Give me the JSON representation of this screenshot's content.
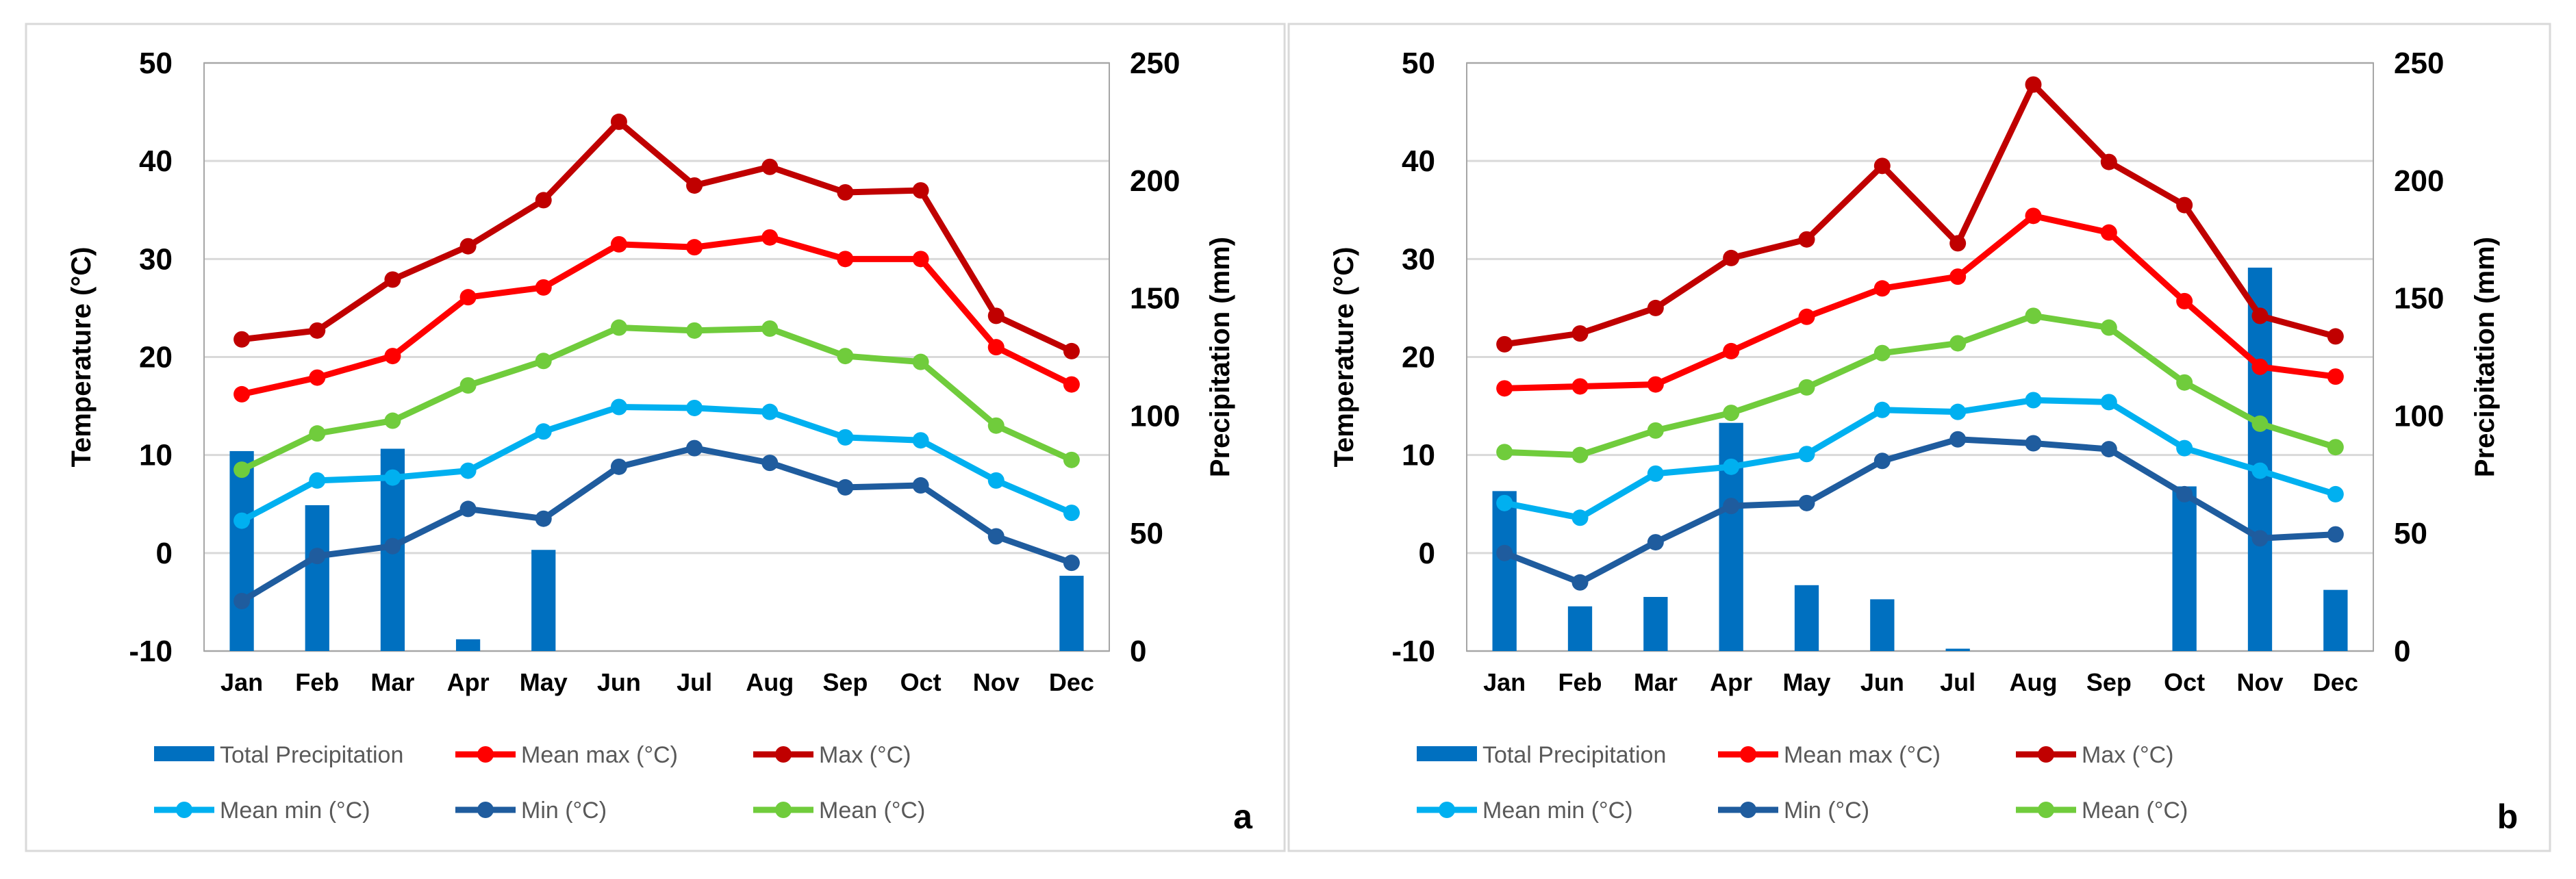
{
  "chart_data": [
    {
      "type": "bar+line",
      "panel_label": "a",
      "categories": [
        "Jan",
        "Feb",
        "Mar",
        "Apr",
        "May",
        "Jun",
        "Jul",
        "Aug",
        "Sep",
        "Oct",
        "Nov",
        "Dec"
      ],
      "ylabel": "Temperature (°C)",
      "y2label": "Precipitation (mm)",
      "ylim": [
        -10,
        50
      ],
      "yticks": [
        "-10",
        "0",
        "10",
        "20",
        "30",
        "40",
        "50"
      ],
      "y2lim": [
        0,
        250
      ],
      "y2ticks": [
        "0",
        "50",
        "100",
        "150",
        "200",
        "250"
      ],
      "bars": {
        "name": "Total Precipitation",
        "values": [
          85,
          62,
          86,
          5,
          43,
          0,
          0,
          0,
          0,
          0,
          0,
          32
        ]
      },
      "series": [
        {
          "name": "Max (°C)",
          "values": [
            21.8,
            22.7,
            27.9,
            31.3,
            36.0,
            44.0,
            37.5,
            39.4,
            36.8,
            37.0,
            24.2,
            20.6
          ]
        },
        {
          "name": "Mean max (°C)",
          "values": [
            16.2,
            17.9,
            20.1,
            26.1,
            27.1,
            31.5,
            31.2,
            32.2,
            30.0,
            30.0,
            21.0,
            17.2
          ]
        },
        {
          "name": "Mean (°C)",
          "values": [
            8.5,
            12.2,
            13.5,
            17.1,
            19.6,
            23.0,
            22.7,
            22.9,
            20.1,
            19.5,
            13.0,
            9.5
          ]
        },
        {
          "name": "Mean min (°C)",
          "values": [
            3.3,
            7.4,
            7.7,
            8.4,
            12.4,
            14.9,
            14.8,
            14.4,
            11.8,
            11.5,
            7.4,
            4.1
          ]
        },
        {
          "name": "Min (°C)",
          "values": [
            -4.9,
            -0.3,
            0.7,
            4.5,
            3.5,
            8.8,
            10.7,
            9.2,
            6.7,
            6.9,
            1.7,
            -1.0
          ]
        }
      ]
    },
    {
      "type": "bar+line",
      "panel_label": "b",
      "categories": [
        "Jan",
        "Feb",
        "Mar",
        "Apr",
        "May",
        "Jun",
        "Jul",
        "Aug",
        "Sep",
        "Oct",
        "Nov",
        "Dec"
      ],
      "ylabel": "Temperature (°C)",
      "y2label": "Precipitation (mm)",
      "ylim": [
        -10,
        50
      ],
      "yticks": [
        "-10",
        "0",
        "10",
        "20",
        "30",
        "40",
        "50"
      ],
      "y2lim": [
        0,
        250
      ],
      "y2ticks": [
        "0",
        "50",
        "100",
        "150",
        "200",
        "250"
      ],
      "bars": {
        "name": "Total Precipitation",
        "values": [
          68,
          19,
          23,
          97,
          28,
          22,
          1,
          0,
          0,
          70,
          163,
          26
        ]
      },
      "series": [
        {
          "name": "Max (°C)",
          "values": [
            21.3,
            22.4,
            25.0,
            30.1,
            32.0,
            39.5,
            31.6,
            47.8,
            39.9,
            35.5,
            24.2,
            22.1
          ]
        },
        {
          "name": "Mean max (°C)",
          "values": [
            16.8,
            17.0,
            17.2,
            20.6,
            24.1,
            27.0,
            28.2,
            34.4,
            32.7,
            25.7,
            19.0,
            18.0
          ]
        },
        {
          "name": "Mean (°C)",
          "values": [
            10.3,
            10.0,
            12.5,
            14.3,
            16.9,
            20.4,
            21.4,
            24.2,
            23.0,
            17.4,
            13.2,
            10.8
          ]
        },
        {
          "name": "Mean min (°C)",
          "values": [
            5.1,
            3.6,
            8.1,
            8.8,
            10.1,
            14.6,
            14.4,
            15.6,
            15.4,
            10.7,
            8.4,
            6.0
          ]
        },
        {
          "name": "Min (°C)",
          "values": [
            0.0,
            -3.0,
            1.1,
            4.8,
            5.1,
            9.4,
            11.6,
            11.2,
            10.6,
            6.0,
            1.5,
            1.9
          ]
        }
      ]
    }
  ],
  "legend": [
    {
      "name": "Total Precipitation",
      "kind": "bar",
      "color": "#0070C0"
    },
    {
      "name": "Mean max (°C)",
      "kind": "line",
      "color": "#FF0000"
    },
    {
      "name": "Max (°C)",
      "kind": "line",
      "color": "#C00000"
    },
    {
      "name": "Mean min (°C)",
      "kind": "line",
      "color": "#00B0F0"
    },
    {
      "name": "Min (°C)",
      "kind": "line",
      "color": "#1F5C9E"
    },
    {
      "name": "Mean (°C)",
      "kind": "line",
      "color": "#70CC3C"
    }
  ],
  "colors": {
    "Total Precipitation": "#0070C0",
    "Mean max (°C)": "#FF0000",
    "Max (°C)": "#C00000",
    "Mean min (°C)": "#00B0F0",
    "Min (°C)": "#1F5C9E",
    "Mean (°C)": "#70CC3C"
  }
}
